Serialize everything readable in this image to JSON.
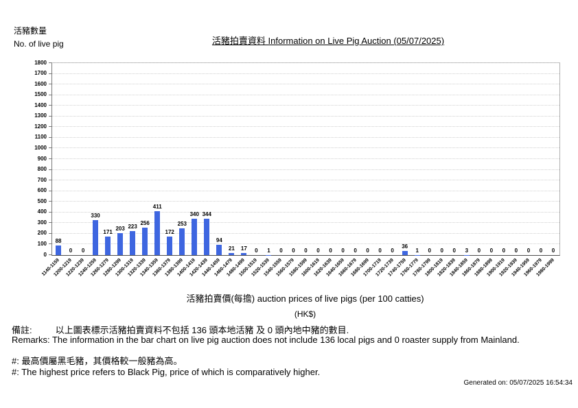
{
  "chart_data": {
    "type": "bar",
    "title": "活豬拍賣資料 Information on Live Pig Auction (05/07/2025)",
    "ylabel_zh": "活豬數量",
    "ylabel_en": "No. of live pig",
    "xlabel": "活豬拍賣價(每擔) auction prices of live pigs (per 100 catties)",
    "xlabel_unit": "(HK$)",
    "ylim": [
      0,
      1800
    ],
    "ytick_step": 100,
    "grid": "horizontal-dotted",
    "legend": "none",
    "bar_color": "#3E66E0",
    "categories": [
      "1140-1159",
      "1200-1219",
      "1220-1239",
      "1240-1259",
      "1260-1279",
      "1280-1299",
      "1300-1319",
      "1320-1339",
      "1340-1359",
      "1360-1379",
      "1380-1399",
      "1400-1419",
      "1420-1439",
      "1440-1459",
      "1460-1479",
      "1480-1499",
      "1500-1519",
      "1520-1539",
      "1540-1559",
      "1560-1579",
      "1580-1599",
      "1600-1619",
      "1620-1639",
      "1640-1659",
      "1660-1679",
      "1680-1699",
      "1700-1719",
      "1720-1739",
      "1740-1759",
      "1760-1779",
      "1780-1799",
      "1800-1819",
      "1820-1839",
      "1840-1859",
      "1860-1879",
      "1880-1899",
      "1900-1919",
      "1920-1939",
      "1940-1959",
      "1960-1979",
      "1980-1999"
    ],
    "values": [
      88,
      0,
      0,
      330,
      171,
      203,
      223,
      256,
      411,
      172,
      253,
      340,
      344,
      94,
      21,
      17,
      0,
      1,
      0,
      0,
      0,
      0,
      0,
      0,
      0,
      0,
      0,
      0,
      36,
      1,
      0,
      0,
      0,
      3,
      0,
      0,
      0,
      0,
      0,
      0,
      0
    ]
  },
  "remarks": {
    "zh_label": "備註:",
    "zh_text": "以上圖表標示活豬拍賣資料不包括 136 頭本地活豬 及 0 頭內地中豬的數目.",
    "en": "Remarks: The information in the bar chart on live pig auction does not include 136 local pigs and 0 roaster supply from Mainland.",
    "note_zh": "#: 最高價屬黑毛豬，其價格較一般豬為高。",
    "note_en": "#: The highest price refers to Black Pig, price of which is comparatively higher."
  },
  "footer": {
    "generated": "Generated on: 05/07/2025 16:54:34"
  }
}
